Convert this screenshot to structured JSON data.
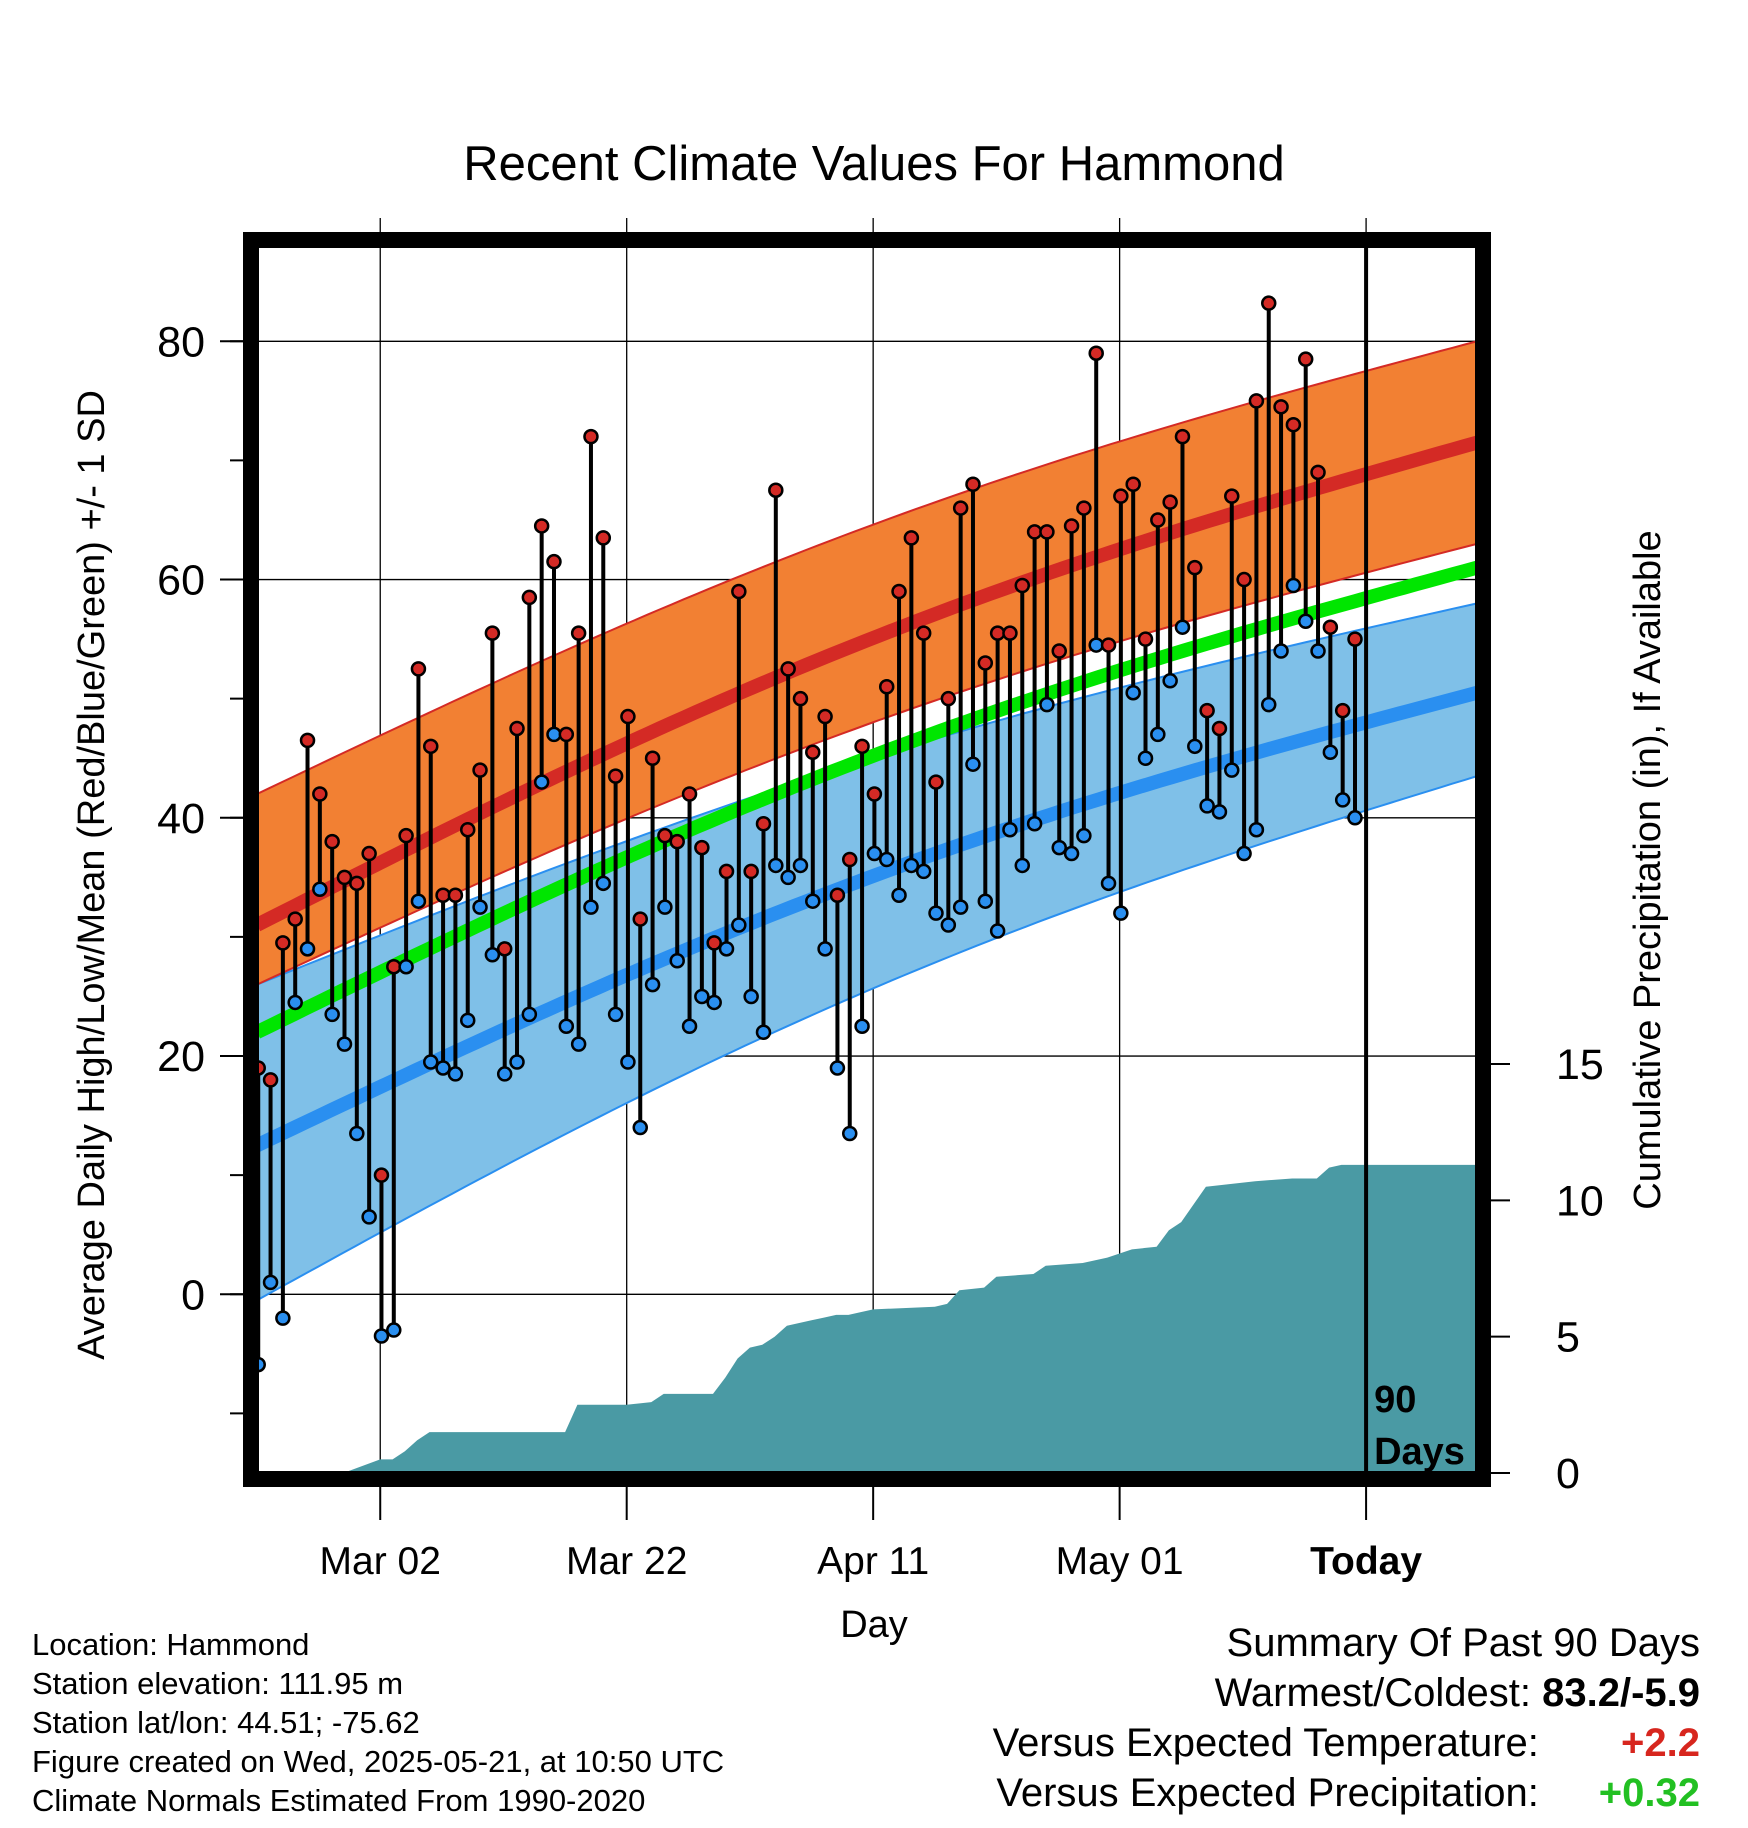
{
  "colors": {
    "high_band": "#f28033",
    "high_mean": "#d42a25",
    "low_band": "#7fc0e8",
    "low_mean": "#2a8ff0",
    "overlap_band": "#9b1a14",
    "mean_line": "#00e600",
    "precip": "#4a9aa4",
    "high_marker": "#d42a25",
    "low_marker": "#2a8ff0"
  },
  "chart_data": {
    "type": "line",
    "title": "Recent Climate Values For Hammond",
    "xlabel": "Day",
    "ylabel": "Average Daily High/Low/Mean (Red/Blue/Green) +/- 1 SD",
    "y2label": "Cumulative Precipitation (in), If Available",
    "ylim": [
      -15,
      88
    ],
    "y2lim": [
      0,
      45
    ],
    "yticks": [
      0,
      20,
      40,
      60,
      80
    ],
    "y2ticks": [
      0,
      5,
      10,
      15
    ],
    "xrange": [
      -90,
      9
    ],
    "xticks": [
      {
        "day": -80,
        "label": "Mar 02"
      },
      {
        "day": -60,
        "label": "Mar 22"
      },
      {
        "day": -40,
        "label": "Apr 11"
      },
      {
        "day": -20,
        "label": "May 01"
      },
      {
        "day": 0,
        "label": "Today"
      }
    ],
    "today_label": [
      "90",
      "Days"
    ],
    "grid": true,
    "normals": {
      "high_mean": {
        "start": 31,
        "end": 71.5
      },
      "high_upper": {
        "start": 42,
        "end": 80
      },
      "high_lower": {
        "start": 26,
        "end": 63
      },
      "low_mean": {
        "start": 12.5,
        "end": 50.5
      },
      "low_upper": {
        "start": 26,
        "end": 58
      },
      "low_lower": {
        "start": -0.5,
        "end": 43.5
      },
      "mean": {
        "start": 22,
        "end": 61
      }
    },
    "highs": [
      19,
      18,
      29.5,
      31.5,
      46.5,
      42,
      38,
      35,
      34.5,
      37,
      10,
      27.5,
      38.5,
      52.5,
      46,
      33.5,
      33.5,
      39,
      44,
      55.5,
      29,
      47.5,
      58.5,
      64.5,
      61.5,
      47,
      55.5,
      72,
      63.5,
      43.5,
      48.5,
      31.5,
      45,
      38.5,
      38,
      42,
      37.5,
      29.5,
      35.5,
      59,
      35.5,
      39.5,
      67.5,
      52.5,
      50,
      45.5,
      48.5,
      33.5,
      36.5,
      46,
      42,
      51,
      59,
      63.5,
      55.5,
      43,
      50,
      66,
      68,
      53,
      55.5,
      55.5,
      59.5,
      64,
      64,
      54,
      64.5,
      66,
      79,
      54.5,
      67,
      68,
      55,
      65,
      66.5,
      72,
      61,
      49,
      47.5,
      67,
      60,
      75,
      83.2,
      74.5,
      73,
      78.5,
      69,
      56,
      49,
      55
    ],
    "lows": [
      -5.9,
      1,
      -2,
      24.5,
      29,
      34,
      23.5,
      21,
      13.5,
      6.5,
      -3.5,
      -3,
      27.5,
      33,
      19.5,
      19,
      18.5,
      23,
      32.5,
      28.5,
      18.5,
      19.5,
      23.5,
      43,
      47,
      22.5,
      21,
      32.5,
      34.5,
      23.5,
      19.5,
      14,
      26,
      32.5,
      28,
      22.5,
      25,
      24.5,
      29,
      31,
      25,
      22,
      36,
      35,
      36,
      33,
      29,
      19,
      13.5,
      22.5,
      37,
      36.5,
      33.5,
      36,
      35.5,
      32,
      31,
      32.5,
      44.5,
      33,
      30.5,
      39,
      36,
      39.5,
      49.5,
      37.5,
      37,
      38.5,
      54.5,
      34.5,
      32,
      50.5,
      45,
      47,
      51.5,
      56,
      46,
      41,
      40.5,
      44,
      37,
      39,
      49.5,
      54,
      59.5,
      56.5,
      54,
      45.5,
      41.5,
      40
    ],
    "precip": [
      [
        -90,
        0
      ],
      [
        -83,
        0
      ],
      [
        -80,
        0.5
      ],
      [
        -79,
        0.5
      ],
      [
        -78,
        0.8
      ],
      [
        -77,
        1.2
      ],
      [
        -76,
        1.5
      ],
      [
        -75,
        1.5
      ],
      [
        -70,
        1.5
      ],
      [
        -65,
        1.5
      ],
      [
        -64,
        2.5
      ],
      [
        -60,
        2.5
      ],
      [
        -58,
        2.6
      ],
      [
        -57,
        2.9
      ],
      [
        -56,
        2.9
      ],
      [
        -53,
        2.9
      ],
      [
        -52,
        3.5
      ],
      [
        -51,
        4.2
      ],
      [
        -50,
        4.6
      ],
      [
        -49,
        4.7
      ],
      [
        -48,
        5.0
      ],
      [
        -47,
        5.4
      ],
      [
        -46,
        5.5
      ],
      [
        -45,
        5.6
      ],
      [
        -44,
        5.7
      ],
      [
        -43,
        5.8
      ],
      [
        -42,
        5.8
      ],
      [
        -41,
        5.9
      ],
      [
        -40,
        6.0
      ],
      [
        -35,
        6.1
      ],
      [
        -34,
        6.2
      ],
      [
        -33,
        6.7
      ],
      [
        -31,
        6.8
      ],
      [
        -30,
        7.2
      ],
      [
        -27,
        7.3
      ],
      [
        -26,
        7.6
      ],
      [
        -23,
        7.7
      ],
      [
        -21,
        7.9
      ],
      [
        -19,
        8.2
      ],
      [
        -17,
        8.3
      ],
      [
        -16,
        8.9
      ],
      [
        -15,
        9.2
      ],
      [
        -13,
        10.5
      ],
      [
        -11,
        10.6
      ],
      [
        -9,
        10.7
      ],
      [
        -6,
        10.8
      ],
      [
        -4,
        10.8
      ],
      [
        -3,
        11.2
      ],
      [
        -2,
        11.3
      ],
      [
        9,
        11.3
      ]
    ]
  },
  "footer": {
    "lines": [
      "Location: Hammond",
      "Station elevation: 111.95 m",
      "Station lat/lon: 44.51; -75.62",
      "Figure created on Wed, 2025-05-21, at 10:50 UTC",
      "Climate Normals Estimated From 1990-2020"
    ]
  },
  "summary": {
    "title": "Summary Of Past 90 Days",
    "rows": [
      {
        "label": "Warmest/Coldest:",
        "value": "83.2/-5.9",
        "tone": "black"
      },
      {
        "label": "Versus Expected Temperature:",
        "value": "+2.2",
        "tone": "red"
      },
      {
        "label": "Versus Expected Precipitation:",
        "value": "+0.32",
        "tone": "green"
      }
    ]
  }
}
